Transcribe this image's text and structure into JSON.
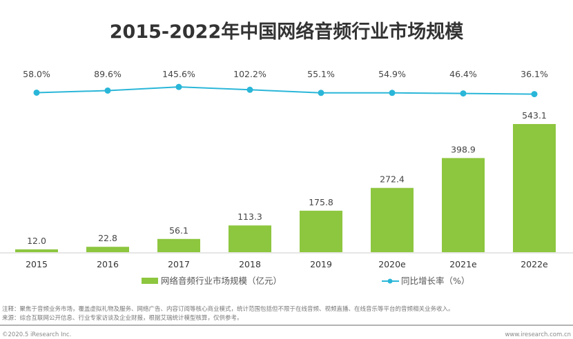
{
  "chart_data": {
    "type": "bar+line",
    "title": "2015-2022年中国网络音频行业市场规模",
    "categories": [
      "2015",
      "2016",
      "2017",
      "2018",
      "2019",
      "2020e",
      "2021e",
      "2022e"
    ],
    "series": [
      {
        "name": "网络音频行业市场规模（亿元）",
        "type": "bar",
        "values": [
          12.0,
          22.8,
          56.1,
          113.3,
          175.8,
          272.4,
          398.9,
          543.1
        ],
        "labels": [
          "12.0",
          "22.8",
          "56.1",
          "113.3",
          "175.8",
          "272.4",
          "398.9",
          "543.1"
        ],
        "color": "#8dc63f"
      },
      {
        "name": "同比增长率（%）",
        "type": "line",
        "values": [
          58.0,
          89.6,
          145.6,
          102.2,
          55.1,
          54.9,
          46.4,
          36.1
        ],
        "labels": [
          "58.0%",
          "89.6%",
          "145.6%",
          "102.2%",
          "55.1%",
          "54.9%",
          "46.4%",
          "36.1%"
        ],
        "color": "#29b6d8"
      }
    ],
    "legend": "bottom",
    "grid": false
  },
  "notes": {
    "note": "注释：聚焦于音频业务市场，覆盖虚拟礼物及服务、网络广告、内容订阅等核心商业模式，统计范围包括但不限于在线音频、视频直播、在线音乐等平台的音频相关业务收入。",
    "source": "来源：综合互联网公开信息、行业专家访谈及企业财报，根据艾瑞统计模型核算，仅供参考。"
  },
  "footer": {
    "copyright": "©2020.5 iResearch Inc.",
    "website": "www.iresearch.com.cn"
  }
}
